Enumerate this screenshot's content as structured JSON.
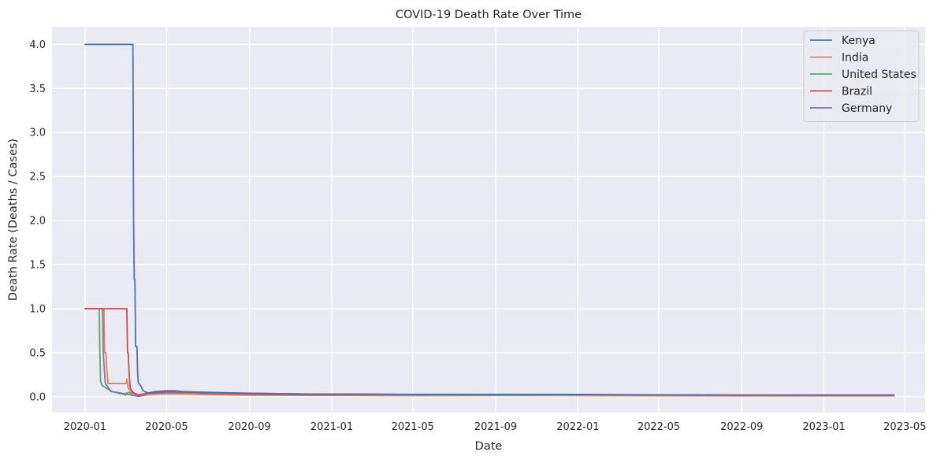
{
  "chart_data": {
    "type": "line",
    "title": "COVID-19 Death Rate Over Time",
    "xlabel": "Date",
    "ylabel": "Death Rate (Deaths / Cases)",
    "ylim": [
      -0.18,
      4.2
    ],
    "x_domain": [
      "2019-11-13",
      "2023-05-31"
    ],
    "x_ticks": [
      {
        "date": "2020-01-01",
        "label": "2020-01"
      },
      {
        "date": "2020-05-01",
        "label": "2020-05"
      },
      {
        "date": "2020-09-01",
        "label": "2020-09"
      },
      {
        "date": "2021-01-01",
        "label": "2021-01"
      },
      {
        "date": "2021-05-01",
        "label": "2021-05"
      },
      {
        "date": "2021-09-01",
        "label": "2021-09"
      },
      {
        "date": "2022-01-01",
        "label": "2022-01"
      },
      {
        "date": "2022-05-01",
        "label": "2022-05"
      },
      {
        "date": "2022-09-01",
        "label": "2022-09"
      },
      {
        "date": "2023-01-01",
        "label": "2023-01"
      },
      {
        "date": "2023-05-01",
        "label": "2023-05"
      }
    ],
    "y_ticks": [
      {
        "value": 0.0,
        "label": "0.0"
      },
      {
        "value": 0.5,
        "label": "0.5"
      },
      {
        "value": 1.0,
        "label": "1.0"
      },
      {
        "value": 1.5,
        "label": "1.5"
      },
      {
        "value": 2.0,
        "label": "2.0"
      },
      {
        "value": 2.5,
        "label": "2.5"
      },
      {
        "value": 3.0,
        "label": "3.0"
      },
      {
        "value": 3.5,
        "label": "3.5"
      },
      {
        "value": 4.0,
        "label": "4.0"
      }
    ],
    "grid": true,
    "legend_position": "top-right",
    "series": [
      {
        "name": "United States",
        "color": "#55a868",
        "points": [
          [
            "2020-01-01",
            1.0
          ],
          [
            "2020-01-22",
            1.0
          ],
          [
            "2020-01-23",
            0.5
          ],
          [
            "2020-01-24",
            0.18
          ],
          [
            "2020-01-26",
            0.13
          ],
          [
            "2020-02-01",
            0.1
          ],
          [
            "2020-02-10",
            0.06
          ],
          [
            "2020-02-20",
            0.04
          ],
          [
            "2020-03-01",
            0.02
          ],
          [
            "2020-03-02",
            0.04
          ],
          [
            "2020-03-07",
            0.05
          ],
          [
            "2020-03-12",
            0.02
          ],
          [
            "2020-03-20",
            0.015
          ],
          [
            "2020-04-01",
            0.03
          ],
          [
            "2020-04-15",
            0.045
          ],
          [
            "2020-05-01",
            0.058
          ],
          [
            "2020-05-20",
            0.06
          ],
          [
            "2020-06-15",
            0.05
          ],
          [
            "2020-07-15",
            0.04
          ],
          [
            "2020-09-01",
            0.03
          ],
          [
            "2020-11-01",
            0.025
          ],
          [
            "2021-01-01",
            0.018
          ],
          [
            "2021-05-01",
            0.018
          ],
          [
            "2021-09-01",
            0.016
          ],
          [
            "2022-01-01",
            0.016
          ],
          [
            "2022-05-01",
            0.012
          ],
          [
            "2022-09-01",
            0.011
          ],
          [
            "2023-01-01",
            0.011
          ],
          [
            "2023-04-15",
            0.011
          ]
        ]
      },
      {
        "name": "Germany",
        "color": "#8172b3",
        "points": [
          [
            "2020-01-01",
            1.0
          ],
          [
            "2020-01-27",
            1.0
          ],
          [
            "2020-01-28",
            0.5
          ],
          [
            "2020-01-31",
            0.15
          ],
          [
            "2020-02-05",
            0.1
          ],
          [
            "2020-02-08",
            0.06
          ],
          [
            "2020-02-25",
            0.04
          ],
          [
            "2020-03-09",
            0.02
          ],
          [
            "2020-03-20",
            0.005
          ],
          [
            "2020-04-01",
            0.02
          ],
          [
            "2020-04-10",
            0.035
          ],
          [
            "2020-04-20",
            0.045
          ],
          [
            "2020-05-01",
            0.045
          ],
          [
            "2020-06-01",
            0.045
          ],
          [
            "2020-09-01",
            0.04
          ],
          [
            "2020-12-01",
            0.03
          ],
          [
            "2021-02-01",
            0.03
          ],
          [
            "2021-05-01",
            0.025
          ],
          [
            "2021-09-01",
            0.025
          ],
          [
            "2022-01-01",
            0.018
          ],
          [
            "2022-05-01",
            0.012
          ],
          [
            "2022-09-01",
            0.01
          ],
          [
            "2023-01-01",
            0.01
          ],
          [
            "2023-04-15",
            0.01
          ]
        ]
      },
      {
        "name": "India",
        "color": "#dd8452",
        "points": [
          [
            "2020-01-01",
            1.0
          ],
          [
            "2020-01-29",
            1.0
          ],
          [
            "2020-01-30",
            0.5
          ],
          [
            "2020-02-01",
            0.5
          ],
          [
            "2020-02-02",
            0.33
          ],
          [
            "2020-02-03",
            0.25
          ],
          [
            "2020-02-04",
            0.15
          ],
          [
            "2020-03-02",
            0.15
          ],
          [
            "2020-03-03",
            0.2
          ],
          [
            "2020-03-05",
            0.1
          ],
          [
            "2020-03-10",
            0.05
          ],
          [
            "2020-03-20",
            0.02
          ],
          [
            "2020-04-01",
            0.025
          ],
          [
            "2020-04-20",
            0.03
          ],
          [
            "2020-05-01",
            0.032
          ],
          [
            "2020-06-01",
            0.03
          ],
          [
            "2020-07-01",
            0.025
          ],
          [
            "2020-09-01",
            0.018
          ],
          [
            "2020-12-01",
            0.015
          ],
          [
            "2021-01-01",
            0.015
          ],
          [
            "2021-05-01",
            0.012
          ],
          [
            "2021-09-01",
            0.013
          ],
          [
            "2022-01-01",
            0.013
          ],
          [
            "2022-05-01",
            0.012
          ],
          [
            "2022-09-01",
            0.012
          ],
          [
            "2023-01-01",
            0.012
          ],
          [
            "2023-04-15",
            0.012
          ]
        ]
      },
      {
        "name": "Brazil",
        "color": "#c44e52",
        "points": [
          [
            "2020-01-01",
            1.0
          ],
          [
            "2020-03-03",
            1.0
          ],
          [
            "2020-03-04",
            0.5
          ],
          [
            "2020-03-05",
            0.5
          ],
          [
            "2020-03-06",
            0.33
          ],
          [
            "2020-03-07",
            0.2
          ],
          [
            "2020-03-08",
            0.1
          ],
          [
            "2020-03-12",
            0.05
          ],
          [
            "2020-03-20",
            0.02
          ],
          [
            "2020-04-01",
            0.04
          ],
          [
            "2020-04-15",
            0.06
          ],
          [
            "2020-05-01",
            0.068
          ],
          [
            "2020-05-15",
            0.068
          ],
          [
            "2020-06-01",
            0.05
          ],
          [
            "2020-07-01",
            0.04
          ],
          [
            "2020-09-01",
            0.03
          ],
          [
            "2020-12-01",
            0.025
          ],
          [
            "2021-01-01",
            0.025
          ],
          [
            "2021-05-01",
            0.028
          ],
          [
            "2021-09-01",
            0.028
          ],
          [
            "2022-01-01",
            0.027
          ],
          [
            "2022-05-01",
            0.022
          ],
          [
            "2022-09-01",
            0.02
          ],
          [
            "2023-01-01",
            0.02
          ],
          [
            "2023-04-15",
            0.02
          ]
        ]
      },
      {
        "name": "Kenya",
        "color": "#4c72b0",
        "points": [
          [
            "2020-01-01",
            4.0
          ],
          [
            "2020-03-12",
            4.0
          ],
          [
            "2020-03-13",
            2.0
          ],
          [
            "2020-03-14",
            1.33
          ],
          [
            "2020-03-15",
            1.33
          ],
          [
            "2020-03-16",
            0.57
          ],
          [
            "2020-03-18",
            0.57
          ],
          [
            "2020-03-19",
            0.27
          ],
          [
            "2020-03-20",
            0.16
          ],
          [
            "2020-03-24",
            0.12
          ],
          [
            "2020-03-27",
            0.07
          ],
          [
            "2020-04-01",
            0.05
          ],
          [
            "2020-04-05",
            0.04
          ],
          [
            "2020-04-15",
            0.045
          ],
          [
            "2020-04-25",
            0.055
          ],
          [
            "2020-05-01",
            0.06
          ],
          [
            "2020-05-20",
            0.06
          ],
          [
            "2020-07-01",
            0.05
          ],
          [
            "2020-09-01",
            0.04
          ],
          [
            "2020-12-01",
            0.03
          ],
          [
            "2021-03-01",
            0.03
          ],
          [
            "2021-05-01",
            0.025
          ],
          [
            "2021-09-01",
            0.025
          ],
          [
            "2022-01-01",
            0.025
          ],
          [
            "2022-05-01",
            0.02
          ],
          [
            "2022-09-01",
            0.018
          ],
          [
            "2023-01-01",
            0.017
          ],
          [
            "2023-04-15",
            0.017
          ]
        ]
      }
    ],
    "legend_order": [
      "Kenya",
      "India",
      "United States",
      "Brazil",
      "Germany"
    ]
  }
}
